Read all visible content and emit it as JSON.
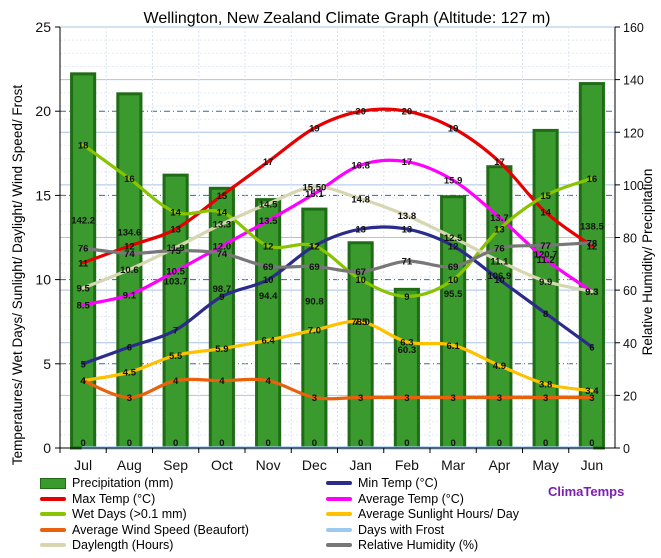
{
  "chart_data": {
    "type": "bar",
    "title": "Wellington, New Zealand   Climate Graph (Altitude: 127 m)",
    "ylabel_left": "Temperatures/ Wet Days/ Sunlight/ Daylight/ Wind Speed/ Frost",
    "ylabel_right": "Relative Humidity/ Precipitation",
    "categories": [
      "Jul",
      "Aug",
      "Sep",
      "Oct",
      "Nov",
      "Dec",
      "Jan",
      "Feb",
      "Mar",
      "Apr",
      "May",
      "Jun"
    ],
    "ylim_left": [
      0,
      25
    ],
    "yticks_left": [
      "0",
      "5",
      "10",
      "15",
      "20",
      "25"
    ],
    "ylim_right": [
      0,
      160
    ],
    "yticks_right": [
      "0",
      "20",
      "40",
      "60",
      "80",
      "100",
      "120",
      "140",
      "160"
    ],
    "precipitation": {
      "name": "Precipitation (mm)",
      "values": [
        142.2,
        134.6,
        103.7,
        98.7,
        94.4,
        90.8,
        78.0,
        60.3,
        95.5,
        106.9,
        120.7,
        138.5
      ],
      "labels": [
        "142.2",
        "134.6",
        "103.7",
        "98.7",
        "94.4",
        "90.8",
        "78.0",
        "60.3",
        "95.5",
        "106.9",
        "120.7",
        "138.5"
      ],
      "bar_zero_labels": [
        "0",
        "0",
        "0",
        "0",
        "0",
        "0",
        "0",
        "0",
        "0",
        "0",
        "0",
        "0"
      ]
    },
    "series": [
      {
        "name": "Max Temp (°C)",
        "color": "#e60000",
        "axis": "left",
        "values": [
          11,
          12,
          13,
          15,
          17,
          19,
          20,
          20,
          19,
          17,
          14,
          12
        ],
        "labels": [
          "11",
          "12",
          "13",
          "15",
          "17",
          "19",
          "20",
          "20",
          "19",
          "17",
          "14",
          "12"
        ]
      },
      {
        "name": "Min Temp (°C)",
        "color": "#2b2b8c",
        "axis": "left",
        "values": [
          5,
          6,
          7,
          9,
          10,
          12,
          13,
          13,
          12,
          10,
          8,
          6
        ],
        "labels": [
          "5",
          "6",
          "7",
          "9",
          "10",
          "12",
          "13",
          "13",
          "12",
          "10",
          "8",
          "6"
        ]
      },
      {
        "name": "Average Temp (°C)",
        "color": "#ff00ff",
        "axis": "left",
        "values": [
          8.5,
          9.1,
          10.5,
          12.0,
          13.5,
          15.1,
          16.8,
          17,
          15.9,
          13.7,
          11.2,
          9.3
        ],
        "labels": [
          "8.5",
          "9.1",
          "10.5",
          "12.0",
          "13.5",
          "15.1",
          "16.8",
          "17",
          "15.9",
          "13.7",
          "11.2",
          "9.3"
        ]
      },
      {
        "name": "Wet Days (>0.1 mm)",
        "color": "#88c400",
        "axis": "left",
        "values": [
          18,
          16,
          14,
          14,
          12,
          12,
          10,
          9,
          10,
          13,
          15,
          16
        ],
        "labels": [
          "18",
          "16",
          "14",
          "14",
          "12",
          "12",
          "10",
          "9",
          "10",
          "13",
          "15",
          "16"
        ]
      },
      {
        "name": "Average Sunlight Hours/ Day",
        "color": "#ffc000",
        "axis": "left",
        "values": [
          4,
          4.5,
          5.5,
          5.9,
          6.4,
          7.0,
          7.5,
          6.3,
          6.1,
          4.9,
          3.8,
          3.4
        ],
        "labels": [
          "4",
          "4.5",
          "5.5",
          "5.9",
          "6.4",
          "7.0",
          "7.5",
          "6.3",
          "6.1",
          "4.9",
          "3.8",
          "3.4"
        ]
      },
      {
        "name": "Average Wind Speed (Beaufort)",
        "color": "#e8620c",
        "axis": "left",
        "values": [
          4,
          3,
          4,
          4,
          4,
          3,
          3,
          3,
          3,
          3,
          3,
          3
        ],
        "labels": [
          "4",
          "3",
          "4",
          "4",
          "4",
          "3",
          "3",
          "3",
          "3",
          "3",
          "3",
          "3"
        ]
      },
      {
        "name": "Days with Frost",
        "color": "#9cc9f0",
        "axis": "left",
        "values": [
          0,
          0,
          0,
          0,
          0,
          0,
          0,
          0,
          0,
          0,
          0,
          0
        ],
        "labels": []
      },
      {
        "name": "Daylength (Hours)",
        "color": "#d6d6b0",
        "axis": "left",
        "values": [
          9.5,
          10.6,
          11.9,
          13.3,
          14.5,
          15.5,
          14.8,
          13.8,
          12.5,
          11.1,
          9.9,
          9.3
        ],
        "labels": [
          "9.5",
          "10.6",
          "11.9",
          "13.3",
          "14.5",
          "15.50",
          "14.8",
          "13.8",
          "12.5",
          "11.1",
          "9.9",
          "9.3"
        ]
      },
      {
        "name": "Relative Humidity (%)",
        "color": "#777777",
        "axis": "right",
        "values": [
          76,
          74,
          75,
          74,
          69,
          69,
          67,
          71,
          69,
          76,
          77,
          78
        ],
        "labels": [
          "76",
          "74",
          "75",
          "74",
          "69",
          "69",
          "67",
          "71",
          "69",
          "76",
          "77",
          "78"
        ]
      }
    ],
    "legend_position": "bottom",
    "grid": true
  },
  "brand": "ClimaTemps"
}
